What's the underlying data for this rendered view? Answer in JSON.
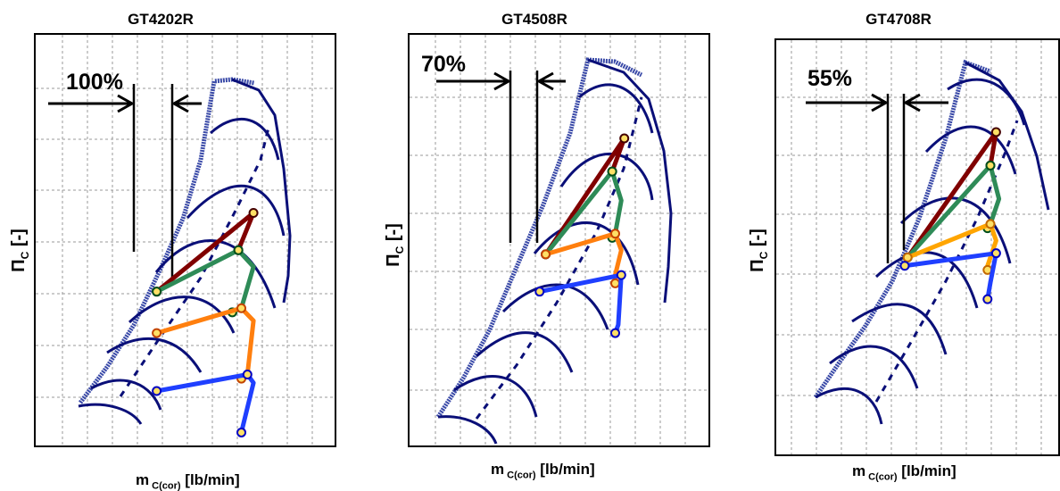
{
  "chart_data": [
    {
      "type": "scatter",
      "title": "GT4202R",
      "xlabel": "m C(cor) [lb/min]",
      "ylabel": "Π C [-]",
      "annotation": "100%",
      "grid": true,
      "series": [
        {
          "color": "#800000",
          "values": [
            [
              0.4,
              0.38
            ],
            [
              0.72,
              0.57
            ],
            [
              0.67,
              0.48
            ]
          ]
        },
        {
          "color": "#2e8b57",
          "values": [
            [
              0.4,
              0.38
            ],
            [
              0.67,
              0.48
            ],
            [
              0.72,
              0.44
            ],
            [
              0.68,
              0.34
            ],
            [
              0.65,
              0.33
            ]
          ]
        },
        {
          "color": "#ff7f0e",
          "values": [
            [
              0.4,
              0.28
            ],
            [
              0.68,
              0.34
            ],
            [
              0.72,
              0.31
            ],
            [
              0.7,
              0.18
            ],
            [
              0.68,
              0.17
            ]
          ]
        },
        {
          "color": "#1f3fff",
          "values": [
            [
              0.4,
              0.14
            ],
            [
              0.7,
              0.18
            ],
            [
              0.72,
              0.16
            ],
            [
              0.68,
              0.04
            ]
          ]
        }
      ]
    },
    {
      "type": "scatter",
      "title": "GT4508R",
      "xlabel": "m C(cor) [lb/min]",
      "ylabel": "Π C [-]",
      "annotation": "70%",
      "grid": true,
      "series": [
        {
          "color": "#800000",
          "values": [
            [
              0.45,
              0.47
            ],
            [
              0.71,
              0.75
            ],
            [
              0.67,
              0.67
            ]
          ]
        },
        {
          "color": "#2e8b57",
          "values": [
            [
              0.45,
              0.47
            ],
            [
              0.67,
              0.67
            ],
            [
              0.7,
              0.6
            ],
            [
              0.68,
              0.52
            ],
            [
              0.67,
              0.51
            ]
          ]
        },
        {
          "color": "#ff7f0e",
          "values": [
            [
              0.45,
              0.47
            ],
            [
              0.68,
              0.52
            ],
            [
              0.7,
              0.48
            ],
            [
              0.68,
              0.42
            ],
            [
              0.68,
              0.4
            ]
          ]
        },
        {
          "color": "#1f3fff",
          "values": [
            [
              0.43,
              0.38
            ],
            [
              0.7,
              0.42
            ],
            [
              0.69,
              0.3
            ],
            [
              0.68,
              0.28
            ]
          ]
        }
      ]
    },
    {
      "type": "scatter",
      "title": "GT4708R",
      "xlabel": "m C(cor) [lb/min]",
      "ylabel": "Π C [-]",
      "annotation": "55%",
      "grid": true,
      "series": [
        {
          "color": "#800000",
          "values": [
            [
              0.46,
              0.48
            ],
            [
              0.77,
              0.78
            ],
            [
              0.75,
              0.7
            ]
          ]
        },
        {
          "color": "#2e8b57",
          "values": [
            [
              0.46,
              0.48
            ],
            [
              0.75,
              0.7
            ],
            [
              0.78,
              0.62
            ],
            [
              0.75,
              0.56
            ],
            [
              0.74,
              0.55
            ]
          ]
        },
        {
          "color": "#ffa500",
          "values": [
            [
              0.46,
              0.48
            ],
            [
              0.75,
              0.56
            ],
            [
              0.77,
              0.52
            ],
            [
              0.74,
              0.46
            ],
            [
              0.74,
              0.45
            ]
          ]
        },
        {
          "color": "#1f3fff",
          "values": [
            [
              0.45,
              0.46
            ],
            [
              0.77,
              0.49
            ],
            [
              0.75,
              0.42
            ],
            [
              0.74,
              0.38
            ]
          ]
        }
      ]
    }
  ]
}
